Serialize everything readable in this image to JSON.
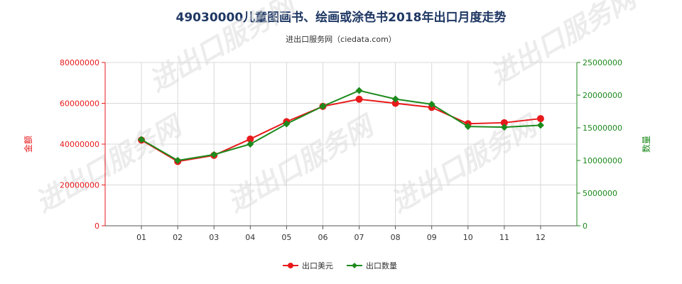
{
  "chart_data": {
    "type": "line",
    "title": "49030000儿童图画书、绘画或涂色书2018年出口月度走势",
    "subtitle": "进出口服务网（ciedata.com）",
    "categories": [
      "01",
      "02",
      "03",
      "04",
      "05",
      "06",
      "07",
      "08",
      "09",
      "10",
      "11",
      "12"
    ],
    "series": [
      {
        "name": "出口美元",
        "axis": "left",
        "color": "#e8191b",
        "values": [
          42000000,
          31500000,
          34500000,
          42500000,
          51000000,
          58500000,
          62000000,
          60000000,
          58000000,
          50000000,
          50500000,
          52500000
        ]
      },
      {
        "name": "出口数量",
        "axis": "right",
        "color": "#1d8a1d",
        "values": [
          13200000,
          10000000,
          10900000,
          12500000,
          15600000,
          18300000,
          20700000,
          19400000,
          18600000,
          15200000,
          15100000,
          15400000
        ]
      }
    ],
    "y_left": {
      "label": "金额",
      "lim": [
        0,
        80000000
      ],
      "ticks": [
        "0",
        "20000000",
        "40000000",
        "60000000",
        "80000000"
      ]
    },
    "y_right": {
      "label": "数量",
      "lim": [
        0,
        25000000
      ],
      "ticks": [
        "0",
        "5000000",
        "10000000",
        "15000000",
        "20000000",
        "25000000"
      ]
    },
    "grid": true,
    "legend_position": "bottom",
    "watermark": "进出口服务网"
  }
}
